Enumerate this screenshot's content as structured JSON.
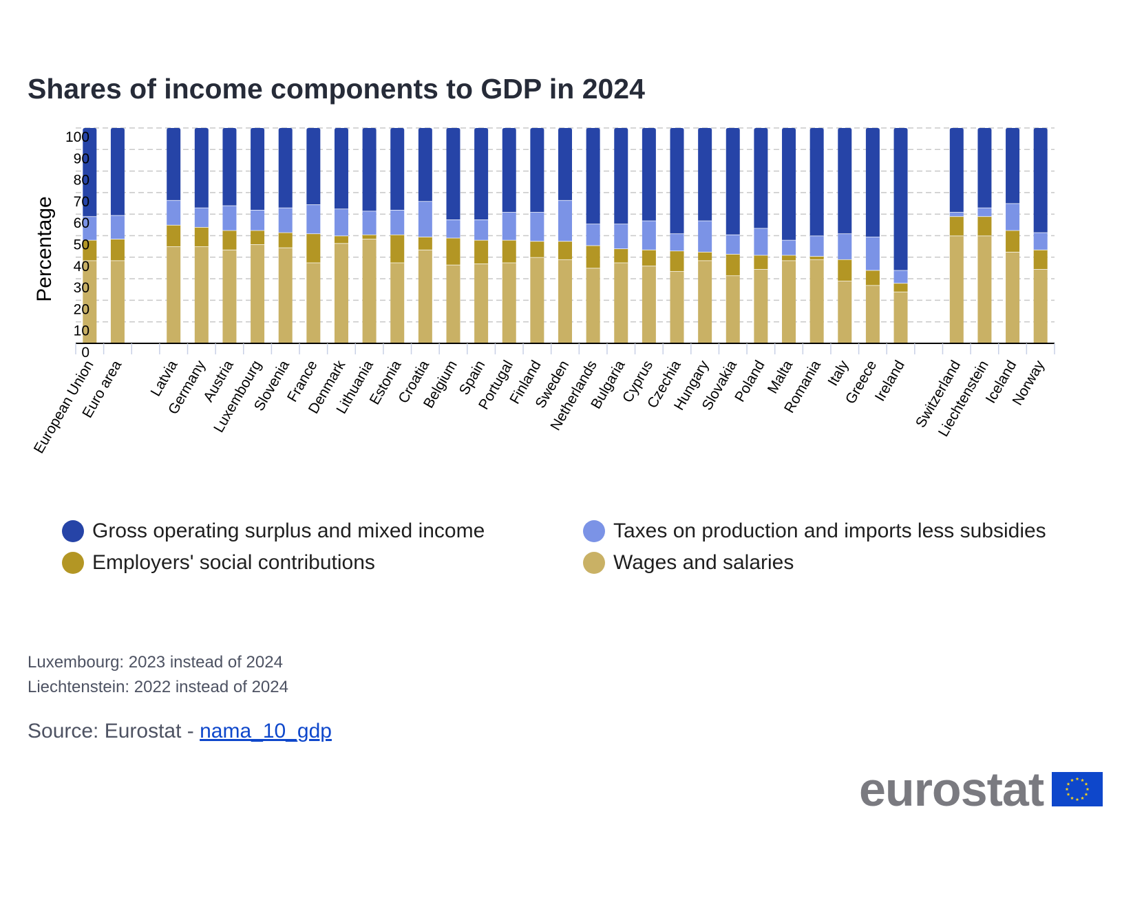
{
  "title": "Shares of income components to GDP in 2024",
  "chart_data": {
    "type": "bar",
    "stacked": true,
    "ylabel": "Percentage",
    "xlabel": "",
    "ylim": [
      0,
      100
    ],
    "yticks": [
      0,
      10,
      20,
      30,
      40,
      50,
      60,
      70,
      80,
      90,
      100
    ],
    "grid": true,
    "categories": [
      "European Union",
      "Euro area",
      "",
      "Latvia",
      "Germany",
      "Austria",
      "Luxembourg",
      "Slovenia",
      "France",
      "Denmark",
      "Lithuania",
      "Estonia",
      "Croatia",
      "Belgium",
      "Spain",
      "Portugal",
      "Finland",
      "Sweden",
      "Netherlands",
      "Bulgaria",
      "Cyprus",
      "Czechia",
      "Hungary",
      "Slovakia",
      "Poland",
      "Malta",
      "Romania",
      "Italy",
      "Greece",
      "Ireland",
      "",
      "Switzerland",
      "Liechtenstein",
      "Iceland",
      "Norway"
    ],
    "series": [
      {
        "name": "Wages and salaries",
        "color": "#c9b165",
        "values": [
          38.5,
          38.5,
          null,
          45,
          45,
          43.5,
          46,
          44.5,
          37.5,
          46.5,
          48.5,
          37.5,
          43.5,
          36.5,
          37,
          37.5,
          40,
          39,
          35,
          37.5,
          36,
          33.5,
          38.5,
          31.5,
          34.5,
          38.5,
          39,
          29,
          27,
          24,
          null,
          50,
          50,
          42.5,
          34.5
        ]
      },
      {
        "name": "Employers' social contributions",
        "color": "#b39624",
        "values": [
          9.5,
          10,
          null,
          10,
          9,
          9,
          6.5,
          7,
          13.5,
          3.5,
          2,
          13,
          6,
          12.5,
          11,
          10.5,
          7.5,
          8.5,
          10.5,
          6.5,
          7.5,
          9.5,
          4,
          10,
          6.5,
          2.5,
          1.5,
          10,
          7,
          4,
          null,
          9,
          9,
          10,
          9
        ]
      },
      {
        "name": "Taxes on production and imports less subsidies",
        "color": "#7b93e6",
        "values": [
          11,
          11,
          null,
          11.5,
          9,
          11.5,
          9.5,
          11.5,
          13.5,
          12.5,
          11,
          11.5,
          16.5,
          8.5,
          9.5,
          13,
          13.5,
          19,
          10,
          11.5,
          13.5,
          8,
          14.5,
          9,
          12.5,
          7,
          9.5,
          12,
          15.5,
          6,
          null,
          2,
          4,
          12.5,
          8
        ]
      },
      {
        "name": "Gross operating surplus and mixed income",
        "color": "#2644a7",
        "values": [
          41,
          40.5,
          null,
          33.5,
          37,
          36,
          38,
          37,
          35.5,
          37.5,
          38.5,
          38,
          34,
          42.5,
          42.5,
          39,
          39,
          33.5,
          44.5,
          44.5,
          43,
          49,
          43,
          49.5,
          46.5,
          52,
          50,
          49,
          50.5,
          66,
          null,
          39,
          37,
          35,
          48.5
        ]
      }
    ]
  },
  "legend": [
    {
      "label": "Gross operating surplus and mixed income",
      "color": "#2644a7"
    },
    {
      "label": "Taxes on production and imports less subsidies",
      "color": "#7b93e6"
    },
    {
      "label": "Employers' social contributions",
      "color": "#b39624"
    },
    {
      "label": "Wages and salaries",
      "color": "#c9b165"
    }
  ],
  "notes": [
    "Luxembourg: 2023 instead of 2024",
    "Liechtenstein: 2022 instead of 2024"
  ],
  "source": {
    "prefix": "Source: Eurostat - ",
    "link_text": "nama_10_gdp"
  },
  "logo": {
    "text": "eurostat",
    "flag_color": "#0e47cb",
    "star_color": "#ffd617"
  }
}
